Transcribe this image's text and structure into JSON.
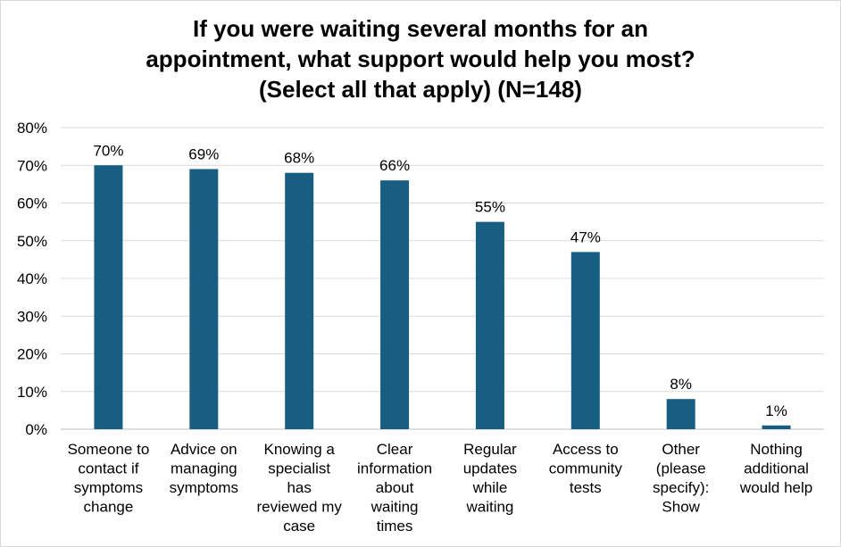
{
  "chart_data": {
    "type": "bar",
    "title_lines": [
      "If you were waiting several months for an",
      "appointment, what support would help you most?",
      "(Select all that apply) (N=148)"
    ],
    "categories": [
      [
        "Someone to",
        "contact if",
        "symptoms",
        "change"
      ],
      [
        "Advice on",
        "managing",
        "symptoms"
      ],
      [
        "Knowing a",
        "specialist",
        "has",
        "reviewed my",
        "case"
      ],
      [
        "Clear",
        "information",
        "about",
        "waiting",
        "times"
      ],
      [
        "Regular",
        "updates",
        "while",
        "waiting"
      ],
      [
        "Access to",
        "community",
        "tests"
      ],
      [
        "Other",
        "(please",
        "specify):",
        "Show"
      ],
      [
        "Nothing",
        "additional",
        "would help"
      ]
    ],
    "values": [
      70,
      69,
      68,
      66,
      55,
      47,
      8,
      1
    ],
    "data_labels": [
      "70%",
      "69%",
      "68%",
      "66%",
      "55%",
      "47%",
      "8%",
      "1%"
    ],
    "y_ticks": [
      "0%",
      "10%",
      "20%",
      "30%",
      "40%",
      "50%",
      "60%",
      "70%",
      "80%"
    ],
    "ylim": [
      0,
      80
    ],
    "y_step": 10,
    "grid": true,
    "bar_color": "#175e82",
    "grid_color": "#d9d9d9"
  }
}
